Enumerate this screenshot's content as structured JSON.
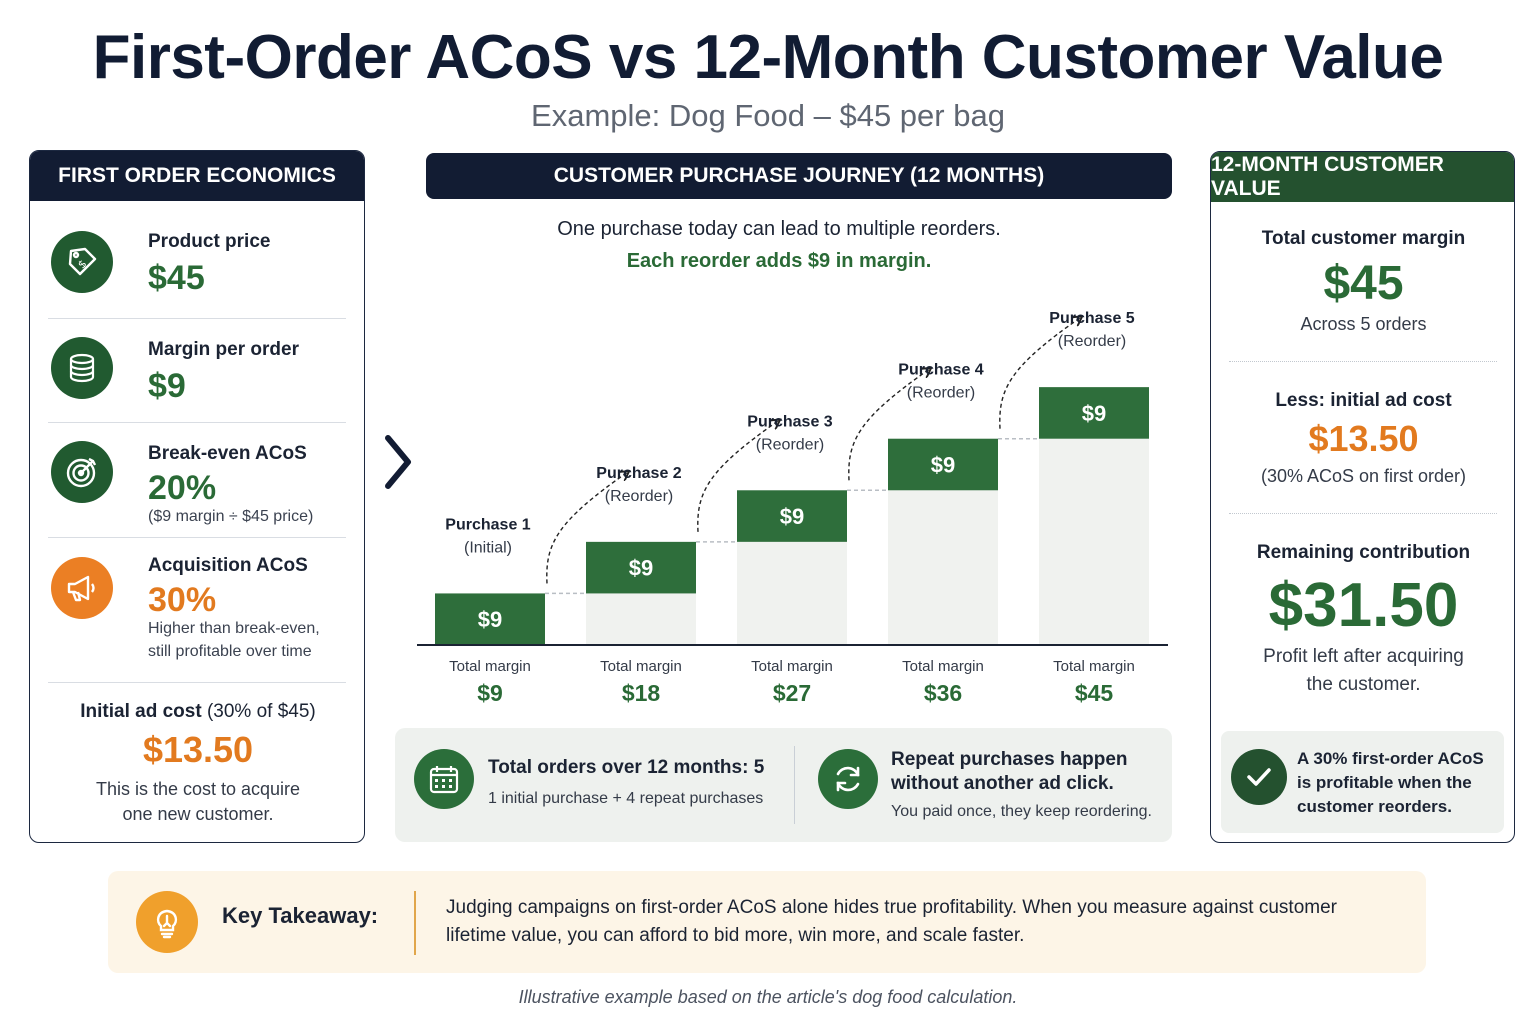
{
  "title": "First-Order ACoS vs 12-Month Customer Value",
  "subtitle": "Example: Dog Food – $45 per bag",
  "left_panel": {
    "header": "FIRST ORDER ECONOMICS",
    "rows": [
      {
        "label": "Product price",
        "value": "$45",
        "icon": "price-tag-icon"
      },
      {
        "label": "Margin per order",
        "value": "$9",
        "icon": "coin-stack-icon"
      },
      {
        "label": "Break-even ACoS",
        "value": "20%",
        "note": "($9 margin ÷ $45 price)",
        "icon": "target-icon"
      },
      {
        "label": "Acquisition ACoS",
        "value": "30%",
        "note1": "Higher than break-even,",
        "note2": "still profitable over time",
        "icon": "megaphone-icon"
      }
    ],
    "ad_cost": {
      "label_bold": "Initial ad cost",
      "label_rest": " (30% of $45)",
      "value": "$13.50",
      "note1": "This is the cost to acquire",
      "note2": "one new customer."
    }
  },
  "middle_panel": {
    "header": "CUSTOMER PURCHASE JOURNEY (12 MONTHS)",
    "intro": "One purchase today can lead to multiple reorders.",
    "intro_highlight": "Each reorder adds $9 in margin.",
    "summary_left_title": "Total orders over 12 months: 5",
    "summary_left_sub": "1 initial purchase + 4 repeat purchases",
    "summary_right_title1": "Repeat purchases happen",
    "summary_right_title2": "without another ad click.",
    "summary_right_sub": "You paid once, they keep reordering."
  },
  "chart_data": {
    "type": "bar",
    "subtype": "stacked-waterfall",
    "categories": [
      "Purchase 1",
      "Purchase 2",
      "Purchase 3",
      "Purchase 4",
      "Purchase 5"
    ],
    "category_notes": [
      "(Initial)",
      "(Reorder)",
      "(Reorder)",
      "(Reorder)",
      "(Reorder)"
    ],
    "increment_values": [
      9,
      9,
      9,
      9,
      9
    ],
    "increment_labels": [
      "$9",
      "$9",
      "$9",
      "$9",
      "$9"
    ],
    "cumulative_values": [
      9,
      18,
      27,
      36,
      45
    ],
    "total_label": "Total margin",
    "total_value_labels": [
      "$9",
      "$18",
      "$27",
      "$36",
      "$45"
    ],
    "ylim": [
      0,
      52
    ],
    "colors": {
      "increment": "#2e6e3b",
      "base": "#f0f2ef",
      "connector": "#b9bec4"
    }
  },
  "right_panel": {
    "header": "12-MONTH CUSTOMER VALUE",
    "total_label": "Total customer margin",
    "total_value": "$45",
    "total_note": "Across 5 orders",
    "less_label": "Less: initial ad cost",
    "less_value": "$13.50",
    "less_note": "(30% ACoS on first order)",
    "remaining_label": "Remaining contribution",
    "remaining_value": "$31.50",
    "remaining_note1": "Profit left after acquiring",
    "remaining_note2": "the customer.",
    "callout": "A 30% first-order ACoS is profitable when the customer reorders."
  },
  "takeaway": {
    "label": "Key Takeaway:",
    "text": "Judging campaigns on first-order ACoS alone hides true profitability. When you measure against customer lifetime value, you can afford to bid more, win more, and scale faster."
  },
  "footnote": "Illustrative example based on the article's dog food calculation.",
  "colors": {
    "navy": "#121c33",
    "green": "#2a6a36",
    "orange": "#e27a1f"
  }
}
